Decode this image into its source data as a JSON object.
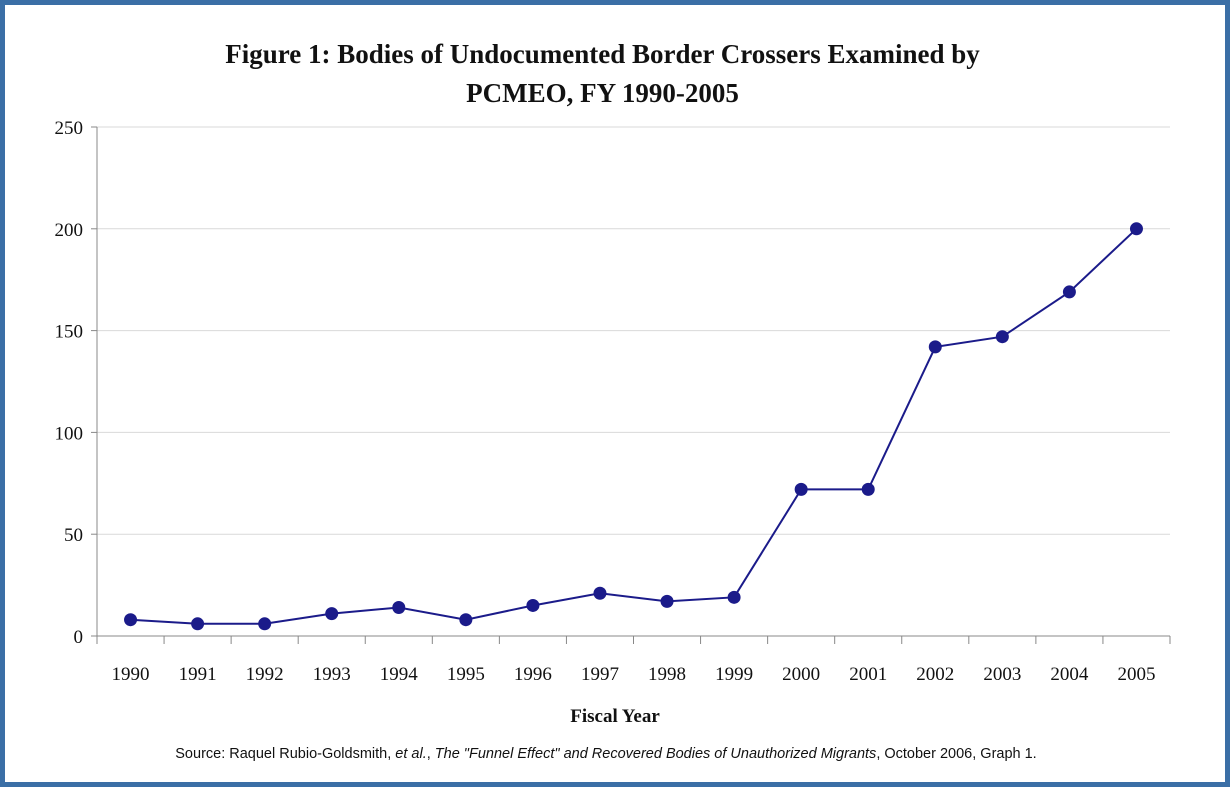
{
  "chart_data": {
    "type": "line",
    "title_line1": "Figure 1: Bodies of Undocumented Border Crossers Examined by",
    "title_line2": "PCMEO, FY 1990-2005",
    "xlabel": "Fiscal Year",
    "ylabel": "",
    "ylim": [
      0,
      250
    ],
    "yticks": [
      0,
      50,
      100,
      150,
      200,
      250
    ],
    "grid": true,
    "legend": "none",
    "categories": [
      "1990",
      "1991",
      "1992",
      "1993",
      "1994",
      "1995",
      "1996",
      "1997",
      "1998",
      "1999",
      "2000",
      "2001",
      "2002",
      "2003",
      "2004",
      "2005"
    ],
    "series": [
      {
        "values": [
          8,
          6,
          6,
          11,
          14,
          8,
          15,
          21,
          17,
          19,
          72,
          72,
          142,
          147,
          169,
          200
        ],
        "color": "#1b1b8a"
      }
    ]
  },
  "source": {
    "prefix": "Source: Raquel Rubio-Goldsmith, ",
    "etal": "et al.",
    "sep": ", ",
    "work": "The \"Funnel Effect\" and Recovered Bodies of Unauthorized Migrants",
    "suffix": ", October 2006, Graph 1."
  },
  "colors": {
    "frame": "#3b6fa6",
    "grid": "#d9d9d9",
    "axis": "#888888"
  }
}
